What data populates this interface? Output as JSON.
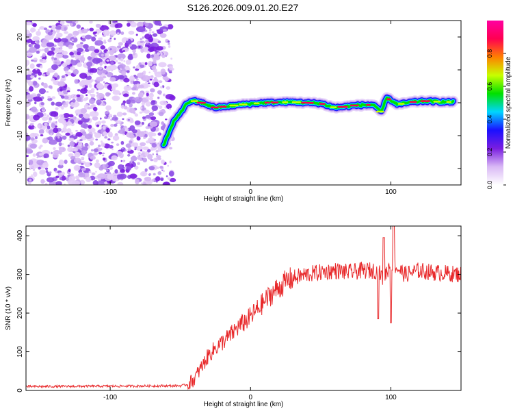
{
  "title": "S126.2026.009.01.20.E27",
  "chart_data": [
    {
      "type": "heatmap",
      "name": "spectrogram",
      "xlabel": "Height of straight line (km)",
      "ylabel": "Frequency (Hz)",
      "xlim": [
        -160,
        150
      ],
      "ylim": [
        -25,
        25
      ],
      "xticks": [
        -100,
        0,
        100
      ],
      "yticks": [
        -20,
        -10,
        0,
        10,
        20
      ],
      "noise_region_x": [
        -160,
        -55
      ],
      "signal_track": {
        "x": [
          -62,
          -55,
          -45,
          -40,
          -35,
          -25,
          -15,
          -5,
          10,
          30,
          50,
          60,
          75,
          88,
          93,
          97,
          105,
          115,
          125,
          135,
          145
        ],
        "freq": [
          -13,
          -6,
          0,
          0.5,
          0,
          -1.5,
          -1,
          -0.5,
          0,
          0.2,
          -0.2,
          -1.5,
          -0.8,
          -0.6,
          -3,
          1.5,
          -0.5,
          0.2,
          0.5,
          0.3,
          0.2
        ]
      },
      "colorbar": {
        "label": "Normalized spectral amplitude",
        "range": [
          0,
          1
        ],
        "ticks": [
          0.0,
          0.2,
          0.4,
          0.6,
          0.8
        ],
        "tick_labels": [
          "0.0",
          "0.2",
          "0.4",
          "0.6",
          "0.8"
        ],
        "colors": [
          "#ffffff",
          "#d9b8f5",
          "#7a1ee0",
          "#1a10ff",
          "#00d5ff",
          "#00e000",
          "#c8ff00",
          "#ff8000",
          "#ff0050",
          "#ff00a0"
        ]
      }
    },
    {
      "type": "line",
      "name": "snr",
      "xlabel": "Height of straight line (km)",
      "ylabel": "SNR (10 * v/v)",
      "xlim": [
        -160,
        150
      ],
      "ylim": [
        0,
        425
      ],
      "xticks": [
        -100,
        0,
        100
      ],
      "yticks": [
        0,
        100,
        200,
        300,
        400
      ],
      "line_color": "#e8282a",
      "envelope": {
        "x": [
          -160,
          -50,
          -45,
          -40,
          -35,
          -30,
          -25,
          -20,
          -15,
          -10,
          -5,
          0,
          5,
          10,
          15,
          20,
          25,
          30,
          40,
          50,
          60,
          70,
          80,
          90,
          95,
          100,
          110,
          120,
          130,
          150
        ],
        "y": [
          10,
          12,
          15,
          30,
          60,
          90,
          110,
          125,
          140,
          160,
          175,
          190,
          210,
          230,
          250,
          265,
          280,
          290,
          300,
          305,
          310,
          305,
          310,
          310,
          290,
          330,
          300,
          310,
          305,
          300
        ]
      },
      "spikes": [
        {
          "x": 91,
          "y": 185
        },
        {
          "x": 95,
          "y": 395
        },
        {
          "x": 100,
          "y": 175
        },
        {
          "x": 102,
          "y": 425
        }
      ]
    }
  ]
}
